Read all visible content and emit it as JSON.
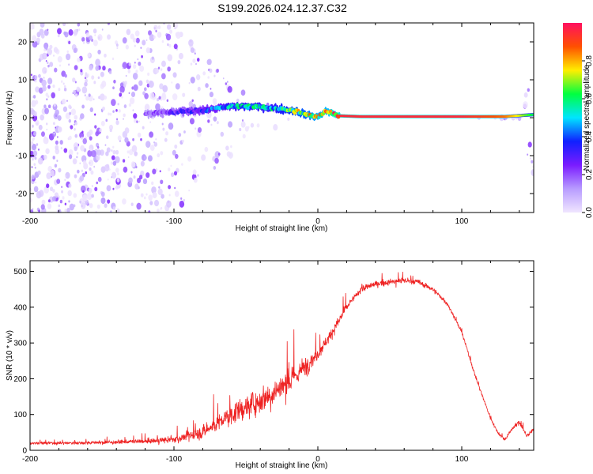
{
  "title": "S199.2026.024.12.37.C32",
  "chart_data": [
    {
      "type": "heatmap",
      "xlabel": "Height of straight line (km)",
      "ylabel": "Frequency (Hz)",
      "xlim": [
        -200,
        150
      ],
      "ylim": [
        -25,
        25
      ],
      "xticks": [
        -200,
        -100,
        0,
        100
      ],
      "xtick_labels": [
        "-200",
        "-100",
        "0",
        "100"
      ],
      "yticks": [
        -20,
        -10,
        0,
        10,
        20
      ],
      "ytick_labels": [
        "-20",
        "-10",
        "0",
        "10",
        "20"
      ],
      "colorbar": {
        "label": "Normalized spectral amplitude",
        "range": [
          0,
          1
        ],
        "ticks": [
          0.0,
          0.2,
          0.4,
          0.6,
          0.8
        ],
        "tick_labels": [
          "0.0",
          "0.2",
          "0.4",
          "0.6",
          "0.8"
        ],
        "colors": [
          "#f0e6ff",
          "#b89cff",
          "#7a1cff",
          "#1020ff",
          "#00e5ff",
          "#00ff40",
          "#ffee00",
          "#ff5000",
          "#ff1060"
        ]
      },
      "ridge": {
        "x": [
          -120,
          -100,
          -80,
          -60,
          -50,
          -40,
          -30,
          -20,
          -15,
          -10,
          -5,
          0,
          5,
          10,
          15,
          30,
          60,
          100,
          130,
          150
        ],
        "freq": [
          1.0,
          1.5,
          2.0,
          3.0,
          3.0,
          2.8,
          2.5,
          2.0,
          1.8,
          1.0,
          0.5,
          0.2,
          1.8,
          1.2,
          0.5,
          0.3,
          0.3,
          0.3,
          0.3,
          0.8
        ],
        "amplitude": [
          0.2,
          0.3,
          0.4,
          0.55,
          0.6,
          0.6,
          0.6,
          0.7,
          0.75,
          0.75,
          0.8,
          0.85,
          0.85,
          0.9,
          0.95,
          0.95,
          0.95,
          0.95,
          0.85,
          0.6
        ]
      },
      "noise_density": {
        "x": [
          -200,
          -150,
          -100,
          -50,
          0,
          50,
          100,
          140,
          150
        ],
        "density": [
          1.0,
          0.9,
          0.55,
          0.05,
          0.0,
          0.0,
          0.0,
          0.05,
          0.25
        ],
        "freq_half_width": [
          25,
          25,
          25,
          6,
          2,
          0,
          0,
          0,
          25
        ]
      }
    },
    {
      "type": "line",
      "xlabel": "Height of straight line (km)",
      "ylabel": "SNR (10 * v/v)",
      "xlim": [
        -200,
        150
      ],
      "ylim": [
        0,
        530
      ],
      "xticks": [
        -200,
        -100,
        0,
        100
      ],
      "xtick_labels": [
        "-200",
        "-100",
        "0",
        "100"
      ],
      "yticks": [
        0,
        100,
        200,
        300,
        400,
        500
      ],
      "ytick_labels": [
        "0",
        "100",
        "200",
        "300",
        "400",
        "500"
      ],
      "series": [
        {
          "name": "SNR",
          "color": "#ee2222",
          "x": [
            -200,
            -180,
            -150,
            -120,
            -100,
            -80,
            -60,
            -40,
            -20,
            -10,
            0,
            10,
            20,
            30,
            40,
            50,
            60,
            70,
            80,
            90,
            100,
            110,
            120,
            125,
            130,
            135,
            140,
            145,
            150
          ],
          "values": [
            20,
            20,
            22,
            25,
            30,
            50,
            100,
            140,
            190,
            230,
            270,
            330,
            400,
            450,
            465,
            470,
            475,
            470,
            450,
            410,
            330,
            200,
            90,
            50,
            30,
            60,
            80,
            40,
            60
          ],
          "noise_amplitude": [
            8,
            8,
            9,
            12,
            18,
            35,
            55,
            70,
            70,
            55,
            35,
            30,
            22,
            18,
            16,
            16,
            18,
            16,
            14,
            12,
            10,
            10,
            9,
            8,
            8,
            10,
            12,
            10,
            10
          ]
        }
      ]
    }
  ]
}
